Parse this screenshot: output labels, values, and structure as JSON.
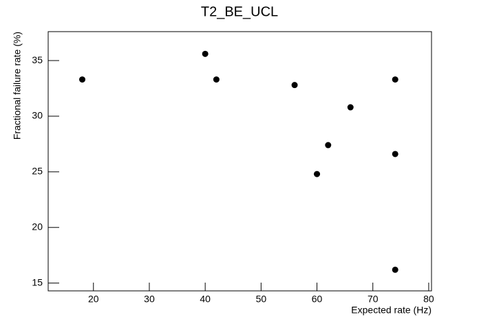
{
  "chart_data": {
    "type": "scatter",
    "title": "T2_BE_UCL",
    "x_label": "Expected rate (Hz)",
    "y_label": "Fractional failure rate (%)",
    "x": [
      18,
      40,
      42,
      56,
      60,
      62,
      66,
      74,
      74,
      74
    ],
    "values": [
      33.3,
      35.6,
      33.3,
      32.8,
      24.8,
      27.4,
      30.8,
      33.3,
      26.6,
      16.2
    ],
    "color": "#000000",
    "xlim": [
      11.9,
      80.5
    ],
    "xticks": [
      20,
      30,
      40,
      50,
      60,
      70,
      80
    ],
    "ylim": [
      14.3,
      37.6
    ],
    "yticks": [
      15,
      20,
      25,
      30,
      35
    ]
  }
}
